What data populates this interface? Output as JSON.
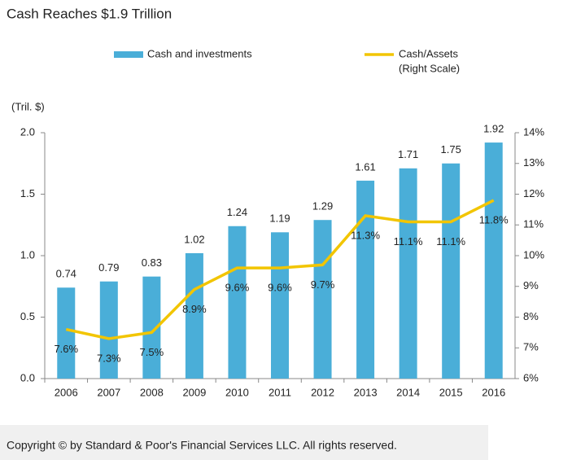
{
  "chart_data": {
    "type": "bar",
    "title": "Cash Reaches $1.9 Trillion",
    "y_label": "(Tril. $)",
    "categories": [
      "2006",
      "2007",
      "2008",
      "2009",
      "2010",
      "2011",
      "2012",
      "2013",
      "2014",
      "2015",
      "2016"
    ],
    "series": [
      {
        "name": "Cash and investments",
        "type": "bar",
        "color": "#4aaed8",
        "values": [
          0.74,
          0.79,
          0.83,
          1.02,
          1.24,
          1.19,
          1.29,
          1.61,
          1.71,
          1.75,
          1.92
        ]
      },
      {
        "name": "Cash/Assets",
        "legend_note": "(Right Scale)",
        "type": "line",
        "axis": "y2",
        "color": "#f2c500",
        "values": [
          7.6,
          7.3,
          7.5,
          8.9,
          9.6,
          9.6,
          9.7,
          11.3,
          11.1,
          11.1,
          11.8
        ],
        "value_labels": [
          "7.6%",
          "7.3%",
          "7.5%",
          "8.9%",
          "9.6%",
          "9.6%",
          "9.7%",
          "11.3%",
          "11.1%",
          "11.1%",
          "11.8%"
        ]
      }
    ],
    "ylim": [
      0,
      2
    ],
    "yticks": [
      {
        "value": 0,
        "label": "0.0"
      },
      {
        "value": 0.5,
        "label": "0.5"
      },
      {
        "value": 1,
        "label": "1.0"
      },
      {
        "value": 1.5,
        "label": "1.5"
      },
      {
        "value": 2,
        "label": "2.0"
      }
    ],
    "y2lim": [
      6,
      14
    ],
    "y2ticks": [
      {
        "value": 6,
        "label": "6%"
      },
      {
        "value": 7,
        "label": "7%"
      },
      {
        "value": 8,
        "label": "8%"
      },
      {
        "value": 9,
        "label": "9%"
      },
      {
        "value": 10,
        "label": "10%"
      },
      {
        "value": 11,
        "label": "11%"
      },
      {
        "value": 12,
        "label": "12%"
      },
      {
        "value": 13,
        "label": "13%"
      },
      {
        "value": 14,
        "label": "14%"
      }
    ],
    "grid": false
  },
  "footer": "Copyright © by Standard & Poor's Financial Services LLC. All rights reserved."
}
